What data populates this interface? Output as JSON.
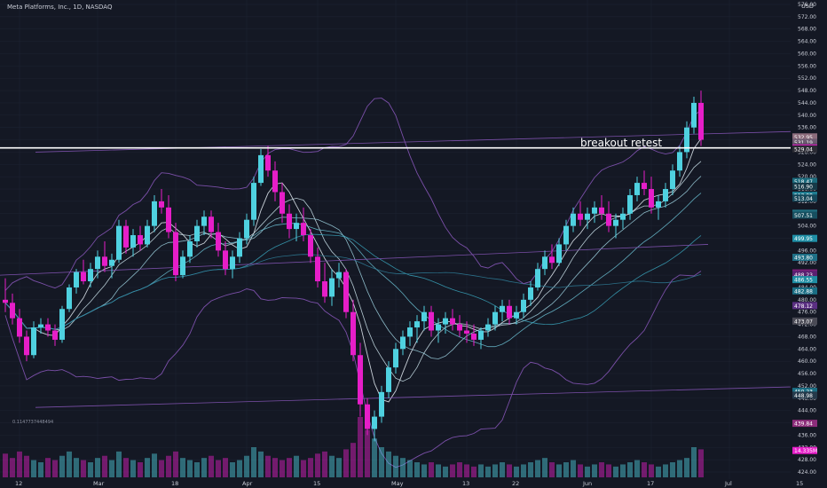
{
  "header": {
    "symbol_line": "Meta Platforms, Inc., 1D, NASDAQ"
  },
  "currency": "USD",
  "annotation": {
    "text": "breakout retest"
  },
  "volume_label": "0.1147737448494",
  "colors": {
    "background": "#141824",
    "up": "#4fd1e0",
    "down": "#e61ec8",
    "panel": "#0f121b",
    "grid": "#1f2433"
  },
  "chart_data": {
    "type": "candlestick",
    "y_axis": {
      "min": 424,
      "max": 576,
      "ticks": [
        424,
        428,
        432,
        436,
        440,
        444,
        448,
        452,
        456,
        460,
        464,
        468,
        472,
        476,
        480,
        484,
        488,
        492,
        496,
        500,
        504,
        508,
        512,
        516,
        520,
        524,
        528,
        532,
        536,
        540,
        544,
        548,
        552,
        556,
        560,
        564,
        568,
        572,
        576
      ]
    },
    "x_axis": {
      "labels": [
        "12",
        "Mar",
        "18",
        "Apr",
        "15",
        "May",
        "13",
        "22",
        "Jun",
        "17",
        "Jul",
        "15"
      ],
      "label_index": [
        2,
        13,
        24,
        34,
        44,
        55,
        65,
        72,
        82,
        91,
        102,
        112
      ]
    },
    "candles": [
      [
        480,
        487,
        476,
        479
      ],
      [
        479,
        482,
        472,
        474
      ],
      [
        474,
        477,
        466,
        468
      ],
      [
        468,
        470,
        460,
        462
      ],
      [
        462,
        473,
        461,
        471
      ],
      [
        471,
        474,
        469,
        472
      ],
      [
        472,
        474,
        468,
        470
      ],
      [
        470,
        472,
        465,
        467
      ],
      [
        467,
        478,
        466,
        477
      ],
      [
        477,
        485,
        476,
        484
      ],
      [
        484,
        490,
        482,
        489
      ],
      [
        489,
        493,
        485,
        486
      ],
      [
        486,
        492,
        484,
        490
      ],
      [
        490,
        496,
        487,
        494
      ],
      [
        494,
        499,
        489,
        491
      ],
      [
        491,
        495,
        487,
        493
      ],
      [
        493,
        506,
        492,
        504
      ],
      [
        504,
        506,
        495,
        497
      ],
      [
        497,
        503,
        494,
        501
      ],
      [
        501,
        504,
        496,
        498
      ],
      [
        498,
        506,
        497,
        504
      ],
      [
        504,
        514,
        502,
        512
      ],
      [
        512,
        516,
        508,
        510
      ],
      [
        510,
        514,
        500,
        502
      ],
      [
        502,
        505,
        486,
        488
      ],
      [
        488,
        496,
        487,
        494
      ],
      [
        494,
        501,
        492,
        499
      ],
      [
        499,
        506,
        497,
        504
      ],
      [
        504,
        509,
        501,
        507
      ],
      [
        507,
        509,
        500,
        502
      ],
      [
        502,
        505,
        494,
        496
      ],
      [
        496,
        499,
        488,
        490
      ],
      [
        490,
        496,
        487,
        494
      ],
      [
        494,
        502,
        492,
        500
      ],
      [
        500,
        508,
        498,
        506
      ],
      [
        506,
        520,
        504,
        518
      ],
      [
        518,
        529,
        517,
        527
      ],
      [
        527,
        530,
        520,
        522
      ],
      [
        522,
        525,
        512,
        515
      ],
      [
        515,
        518,
        505,
        508
      ],
      [
        508,
        511,
        500,
        503
      ],
      [
        503,
        508,
        499,
        505
      ],
      [
        505,
        510,
        499,
        501
      ],
      [
        501,
        503,
        492,
        494
      ],
      [
        494,
        497,
        484,
        486
      ],
      [
        486,
        492,
        479,
        481
      ],
      [
        481,
        490,
        478,
        487
      ],
      [
        487,
        492,
        484,
        489
      ],
      [
        489,
        490,
        474,
        476
      ],
      [
        476,
        480,
        460,
        462
      ],
      [
        462,
        466,
        442,
        446
      ],
      [
        446,
        448,
        436,
        438
      ],
      [
        438,
        444,
        434,
        442
      ],
      [
        442,
        452,
        440,
        450
      ],
      [
        450,
        460,
        448,
        458
      ],
      [
        458,
        466,
        456,
        464
      ],
      [
        464,
        470,
        462,
        468
      ],
      [
        468,
        473,
        465,
        471
      ],
      [
        471,
        475,
        466,
        473
      ],
      [
        473,
        478,
        470,
        476
      ],
      [
        476,
        478,
        468,
        470
      ],
      [
        470,
        474,
        466,
        472
      ],
      [
        472,
        476,
        469,
        474
      ],
      [
        474,
        477,
        470,
        472
      ],
      [
        472,
        475,
        468,
        470
      ],
      [
        470,
        473,
        466,
        469
      ],
      [
        469,
        472,
        465,
        467
      ],
      [
        467,
        471,
        464,
        470
      ],
      [
        470,
        474,
        468,
        472
      ],
      [
        472,
        478,
        470,
        476
      ],
      [
        476,
        480,
        473,
        478
      ],
      [
        478,
        480,
        472,
        474
      ],
      [
        474,
        478,
        472,
        476
      ],
      [
        476,
        482,
        474,
        480
      ],
      [
        480,
        486,
        478,
        484
      ],
      [
        484,
        492,
        483,
        490
      ],
      [
        490,
        496,
        488,
        494
      ],
      [
        494,
        498,
        490,
        492
      ],
      [
        492,
        500,
        491,
        498
      ],
      [
        498,
        506,
        496,
        504
      ],
      [
        504,
        510,
        502,
        508
      ],
      [
        508,
        512,
        504,
        506
      ],
      [
        506,
        510,
        503,
        508
      ],
      [
        508,
        512,
        505,
        510
      ],
      [
        510,
        514,
        506,
        508
      ],
      [
        508,
        512,
        502,
        504
      ],
      [
        504,
        508,
        500,
        506
      ],
      [
        506,
        510,
        503,
        508
      ],
      [
        508,
        516,
        506,
        514
      ],
      [
        514,
        520,
        512,
        518
      ],
      [
        518,
        522,
        514,
        516
      ],
      [
        516,
        520,
        508,
        510
      ],
      [
        510,
        514,
        506,
        512
      ],
      [
        512,
        518,
        510,
        516
      ],
      [
        516,
        524,
        514,
        522
      ],
      [
        522,
        530,
        520,
        528
      ],
      [
        528,
        538,
        526,
        536
      ],
      [
        536,
        546,
        534,
        544
      ],
      [
        544,
        548,
        530,
        532
      ]
    ],
    "volume": [
      11,
      9,
      12,
      10,
      8,
      7,
      9,
      8,
      10,
      12,
      9,
      8,
      7,
      9,
      10,
      8,
      12,
      9,
      8,
      7,
      9,
      11,
      8,
      10,
      12,
      9,
      8,
      7,
      9,
      10,
      8,
      9,
      7,
      8,
      10,
      14,
      12,
      10,
      9,
      8,
      9,
      10,
      8,
      9,
      11,
      12,
      10,
      9,
      13,
      16,
      28,
      22,
      18,
      14,
      12,
      10,
      9,
      8,
      7,
      6,
      7,
      6,
      5,
      6,
      7,
      6,
      5,
      6,
      5,
      6,
      7,
      6,
      5,
      6,
      7,
      8,
      9,
      7,
      6,
      7,
      8,
      6,
      5,
      6,
      7,
      6,
      5,
      6,
      7,
      8,
      7,
      6,
      5,
      6,
      7,
      8,
      9,
      14,
      13
    ],
    "price_labels": [
      "532.95",
      "531.19",
      "529.70",
      "529.37",
      "529.04",
      "518.47",
      "516.90",
      "513.98",
      "513.04",
      "508.13",
      "507.51",
      "499.95",
      "493.80",
      "488.74",
      "488.23",
      "486.55",
      "482.88",
      "478.12",
      "473.07",
      "450.23",
      "448.98",
      "14.335M",
      "439.84"
    ],
    "breakout_level": 529.37
  }
}
